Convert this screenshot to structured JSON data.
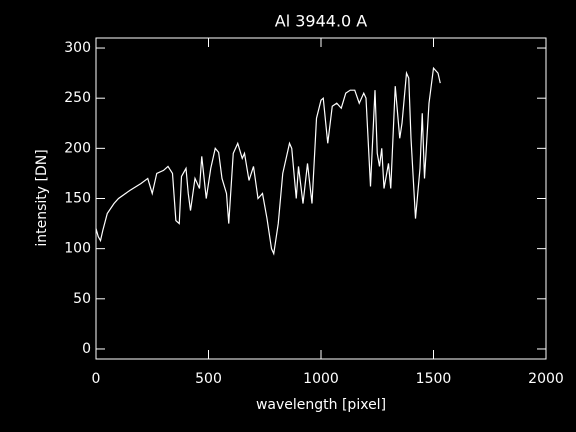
{
  "chart_data": {
    "type": "line",
    "title": "Al 3944.0 A",
    "x_label": "wavelength [pixel]",
    "y_label": "intensity [DN]",
    "x": [
      0,
      10,
      20,
      30,
      50,
      80,
      100,
      150,
      200,
      230,
      250,
      270,
      300,
      320,
      340,
      355,
      370,
      380,
      400,
      410,
      420,
      440,
      460,
      470,
      490,
      510,
      530,
      545,
      560,
      580,
      590,
      610,
      630,
      650,
      660,
      680,
      700,
      720,
      740,
      760,
      780,
      790,
      810,
      830,
      850,
      860,
      870,
      890,
      900,
      920,
      940,
      960,
      980,
      1000,
      1010,
      1030,
      1050,
      1070,
      1090,
      1110,
      1130,
      1150,
      1170,
      1190,
      1200,
      1220,
      1240,
      1250,
      1260,
      1270,
      1280,
      1300,
      1310,
      1330,
      1350,
      1360,
      1380,
      1390,
      1400,
      1420,
      1440,
      1450,
      1460,
      1480,
      1500,
      1520,
      1530
    ],
    "values": [
      120,
      112,
      108,
      118,
      135,
      145,
      150,
      158,
      165,
      170,
      155,
      175,
      178,
      182,
      175,
      128,
      125,
      172,
      180,
      155,
      138,
      170,
      160,
      192,
      150,
      180,
      200,
      196,
      170,
      155,
      125,
      195,
      205,
      190,
      195,
      168,
      182,
      150,
      155,
      130,
      100,
      95,
      125,
      175,
      195,
      205,
      200,
      150,
      182,
      145,
      185,
      145,
      230,
      248,
      250,
      205,
      242,
      245,
      240,
      255,
      258,
      258,
      245,
      255,
      250,
      162,
      258,
      195,
      182,
      200,
      160,
      185,
      160,
      262,
      210,
      225,
      275,
      270,
      210,
      130,
      180,
      235,
      170,
      245,
      280,
      275,
      265
    ],
    "color": "#ffffff",
    "xlim": [
      0,
      2000
    ],
    "xticks": [
      0,
      500,
      1000,
      1500,
      2000
    ],
    "ylim": [
      -10,
      310
    ],
    "yticks": [
      0,
      50,
      100,
      150,
      200,
      250,
      300
    ]
  }
}
